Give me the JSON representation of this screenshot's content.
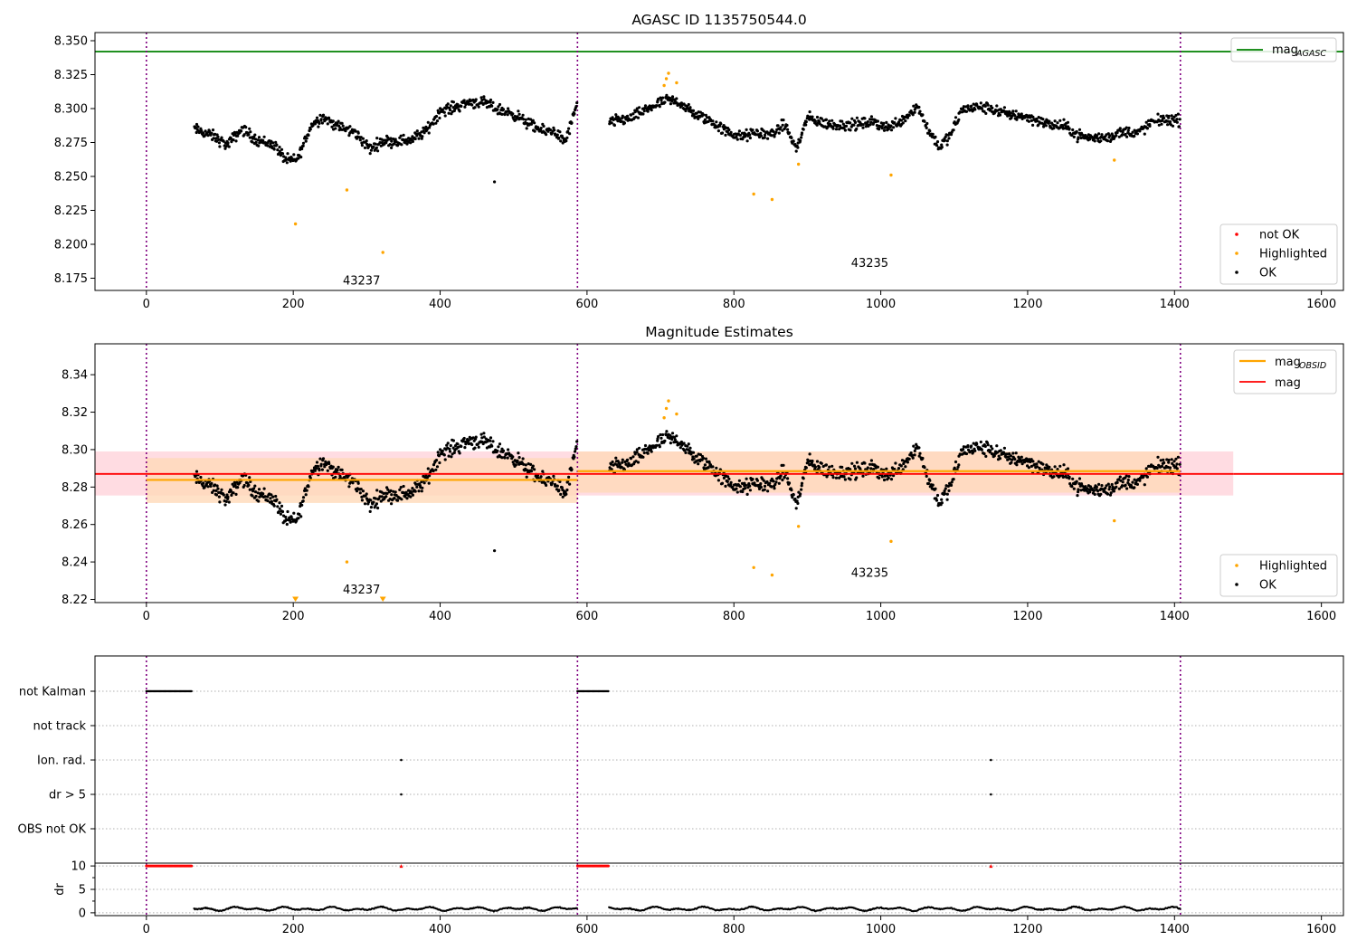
{
  "figure": {
    "panel1_title": "AGASC ID 1135750544.0",
    "panel2_title": "Magnitude Estimates"
  },
  "colors": {
    "ok": "#000000",
    "highlighted": "#ffa500",
    "not_ok": "#ff0000",
    "mag_agasc": "#008000",
    "mag": "#ff0000",
    "mag_obsid": "#ffa500",
    "obsid_boundary": "#800080",
    "band_mag": "#ffc0cb",
    "band_obsid": "#ffdab9"
  },
  "chart_data": [
    {
      "type": "scatter",
      "title": "AGASC ID 1135750544.0",
      "xlim": [
        -70,
        1630
      ],
      "ylim": [
        8.166,
        8.356
      ],
      "x_ticks": [
        0,
        200,
        400,
        600,
        800,
        1000,
        1200,
        1400,
        1600
      ],
      "y_ticks": [
        8.175,
        8.2,
        8.225,
        8.25,
        8.275,
        8.3,
        8.325,
        8.35
      ],
      "y_tick_labels": [
        "8.175",
        "8.200",
        "8.225",
        "8.250",
        "8.275",
        "8.300",
        "8.325",
        "8.350"
      ],
      "obsid_boundaries": [
        0,
        587,
        1408
      ],
      "obsid_labels": [
        {
          "text": "43237",
          "x": 293,
          "y": 8.173
        },
        {
          "text": "43235",
          "x": 985,
          "y": 8.186
        }
      ],
      "hlines": [
        {
          "name": "mag_AGASC",
          "y": 8.342
        }
      ],
      "legend_top": {
        "position": "upper right",
        "entries": [
          {
            "label": "mag",
            "sub": "AGASC"
          }
        ]
      },
      "legend_bottom": {
        "position": "lower right",
        "entries": [
          "not OK",
          "Highlighted",
          "OK"
        ]
      },
      "highlighted_points": [
        [
          203,
          8.215
        ],
        [
          273,
          8.24
        ],
        [
          322,
          8.194
        ],
        [
          705,
          8.317
        ],
        [
          708,
          8.322
        ],
        [
          711,
          8.326
        ],
        [
          722,
          8.319
        ],
        [
          827,
          8.237
        ],
        [
          852,
          8.233
        ],
        [
          888,
          8.259
        ],
        [
          1014,
          8.251
        ],
        [
          1318,
          8.262
        ]
      ],
      "outliers": [
        [
          474,
          8.246
        ]
      ],
      "ok_trend_segments": [
        {
          "x": [
            65,
            90,
            110,
            130,
            150,
            175,
            190,
            205,
            225,
            240,
            260,
            285,
            305,
            320,
            340,
            360,
            380,
            400,
            420,
            440,
            460,
            480,
            500,
            520,
            540,
            555,
            570,
            587
          ],
          "y": [
            8.285,
            8.28,
            8.273,
            8.285,
            8.277,
            8.273,
            8.262,
            8.262,
            8.288,
            8.294,
            8.287,
            8.282,
            8.27,
            8.276,
            8.276,
            8.277,
            8.283,
            8.298,
            8.301,
            8.305,
            8.304,
            8.299,
            8.296,
            8.289,
            8.283,
            8.284,
            8.275,
            8.303
          ]
        },
        {
          "x": [
            630,
            660,
            690,
            710,
            725,
            745,
            765,
            790,
            810,
            830,
            850,
            870,
            885,
            900,
            930,
            960,
            990,
            1010,
            1030,
            1050,
            1065,
            1080,
            1095,
            1110,
            1130,
            1150,
            1170,
            1190,
            1210,
            1230,
            1250,
            1270,
            1290,
            1310,
            1330,
            1350,
            1370,
            1385,
            1408
          ],
          "y": [
            8.29,
            8.293,
            8.302,
            8.306,
            8.305,
            8.296,
            8.292,
            8.283,
            8.279,
            8.282,
            8.281,
            8.288,
            8.27,
            8.293,
            8.288,
            8.288,
            8.29,
            8.286,
            8.292,
            8.302,
            8.284,
            8.272,
            8.28,
            8.299,
            8.301,
            8.3,
            8.296,
            8.295,
            8.292,
            8.288,
            8.287,
            8.28,
            8.278,
            8.279,
            8.283,
            8.282,
            8.29,
            8.292,
            8.291
          ]
        }
      ]
    },
    {
      "type": "scatter",
      "title": "Magnitude Estimates",
      "xlim": [
        -70,
        1630
      ],
      "ylim": [
        8.2183,
        8.3565
      ],
      "x_ticks": [
        0,
        200,
        400,
        600,
        800,
        1000,
        1200,
        1400,
        1600
      ],
      "y_ticks": [
        8.22,
        8.24,
        8.26,
        8.28,
        8.3,
        8.32,
        8.34
      ],
      "y_tick_labels": [
        "8.22",
        "8.24",
        "8.26",
        "8.28",
        "8.30",
        "8.32",
        "8.34"
      ],
      "obsid_boundaries": [
        0,
        587,
        1408
      ],
      "obsid_labels": [
        {
          "text": "43237",
          "x": 293,
          "y": 8.225
        },
        {
          "text": "43235",
          "x": 985,
          "y": 8.234
        }
      ],
      "mag": {
        "y": 8.287,
        "band": [
          8.2755,
          8.299
        ],
        "x_range": [
          -70,
          1480
        ]
      },
      "mag_obsid": [
        {
          "x_range": [
            0,
            587
          ],
          "y": 8.2838,
          "band": [
            8.2715,
            8.2955
          ]
        },
        {
          "x_range": [
            587,
            1408
          ],
          "y": 8.2885,
          "band": [
            8.277,
            8.299
          ]
        }
      ],
      "legend_top": {
        "position": "upper right",
        "entries": [
          {
            "label": "mag",
            "sub": "OBSID"
          },
          {
            "label": "mag",
            "sub": ""
          }
        ]
      },
      "legend_bottom": {
        "position": "lower right",
        "entries": [
          "Highlighted",
          "OK"
        ]
      },
      "offscale_low_markers": [
        203,
        322
      ]
    },
    {
      "type": "scatter",
      "xlim": [
        -70,
        1630
      ],
      "x_ticks": [
        0,
        200,
        400,
        600,
        800,
        1000,
        1200,
        1400,
        1600
      ],
      "flag_rows": [
        "not Kalman",
        "not track",
        "Ion. rad.",
        "dr > 5",
        "OBS not OK"
      ],
      "flags": {
        "not_kalman_ranges": [
          [
            0,
            62
          ],
          [
            587,
            630
          ]
        ],
        "ion_rad_x": [
          347,
          1150
        ],
        "dr_gt5_x": [
          347,
          1150
        ]
      },
      "dr_panel": {
        "ylabel": "dr",
        "ylim": [
          -0.6,
          10.6
        ],
        "y_ticks": [
          0,
          5,
          10
        ],
        "clipped_value": 10,
        "clipped_ranges": [
          [
            0,
            62
          ],
          [
            587,
            630
          ]
        ],
        "clipped_single_x": [
          347,
          1150
        ],
        "typical_range": [
          0.2,
          1.5
        ]
      }
    }
  ]
}
